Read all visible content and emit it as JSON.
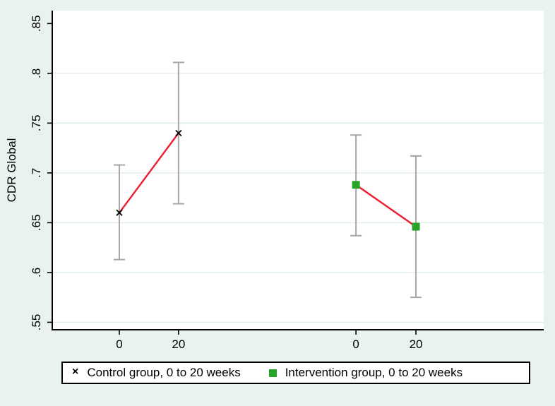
{
  "figure": {
    "background": "#e9f1f1",
    "plot_background": "#ffffff",
    "grid_color": "#e0edec",
    "axis_color": "#000000"
  },
  "chart_data": {
    "type": "line",
    "title": "",
    "xlabel": "",
    "ylabel": "CDR Global",
    "x_unit": "weeks",
    "ylim": [
      0.5425,
      0.863
    ],
    "yticks": [
      0.55,
      0.6,
      0.65,
      0.7,
      0.75,
      0.8,
      0.85
    ],
    "ytick_labels": [
      ".55",
      ".6",
      ".65",
      ".7",
      ".75",
      ".8",
      ".85"
    ],
    "grid_ticks": [
      0.55,
      0.6,
      0.65,
      0.7,
      0.75,
      0.8
    ],
    "grid": "horizontal",
    "legend_position": "bottom",
    "error_bar_color": "#a6a6a6",
    "series": [
      {
        "name": "Control group, 0 to 20 weeks",
        "marker": "x",
        "marker_color": "#000000",
        "line_color": "#ee1c2e",
        "x_weeks": [
          0,
          20
        ],
        "x_frac": [
          0.1365,
          0.257
        ],
        "xtick_labels": [
          "0",
          "20"
        ],
        "values": [
          0.66,
          0.74
        ],
        "ci_low": [
          0.613,
          0.669
        ],
        "ci_high": [
          0.708,
          0.811
        ]
      },
      {
        "name": "Intervention group, 0 to 20 weeks",
        "marker": "square",
        "marker_color": "#28a428",
        "line_color": "#ee1c2e",
        "x_weeks": [
          0,
          20
        ],
        "x_frac": [
          0.618,
          0.74
        ],
        "xtick_labels": [
          "0",
          "20"
        ],
        "values": [
          0.688,
          0.646
        ],
        "ci_low": [
          0.637,
          0.575
        ],
        "ci_high": [
          0.738,
          0.717
        ]
      }
    ]
  },
  "legend": {
    "items": [
      {
        "glyph": "×",
        "label": "Control group, 0 to 20 weeks"
      },
      {
        "glyph": "■",
        "label": "Intervention group, 0 to 20 weeks"
      }
    ]
  }
}
